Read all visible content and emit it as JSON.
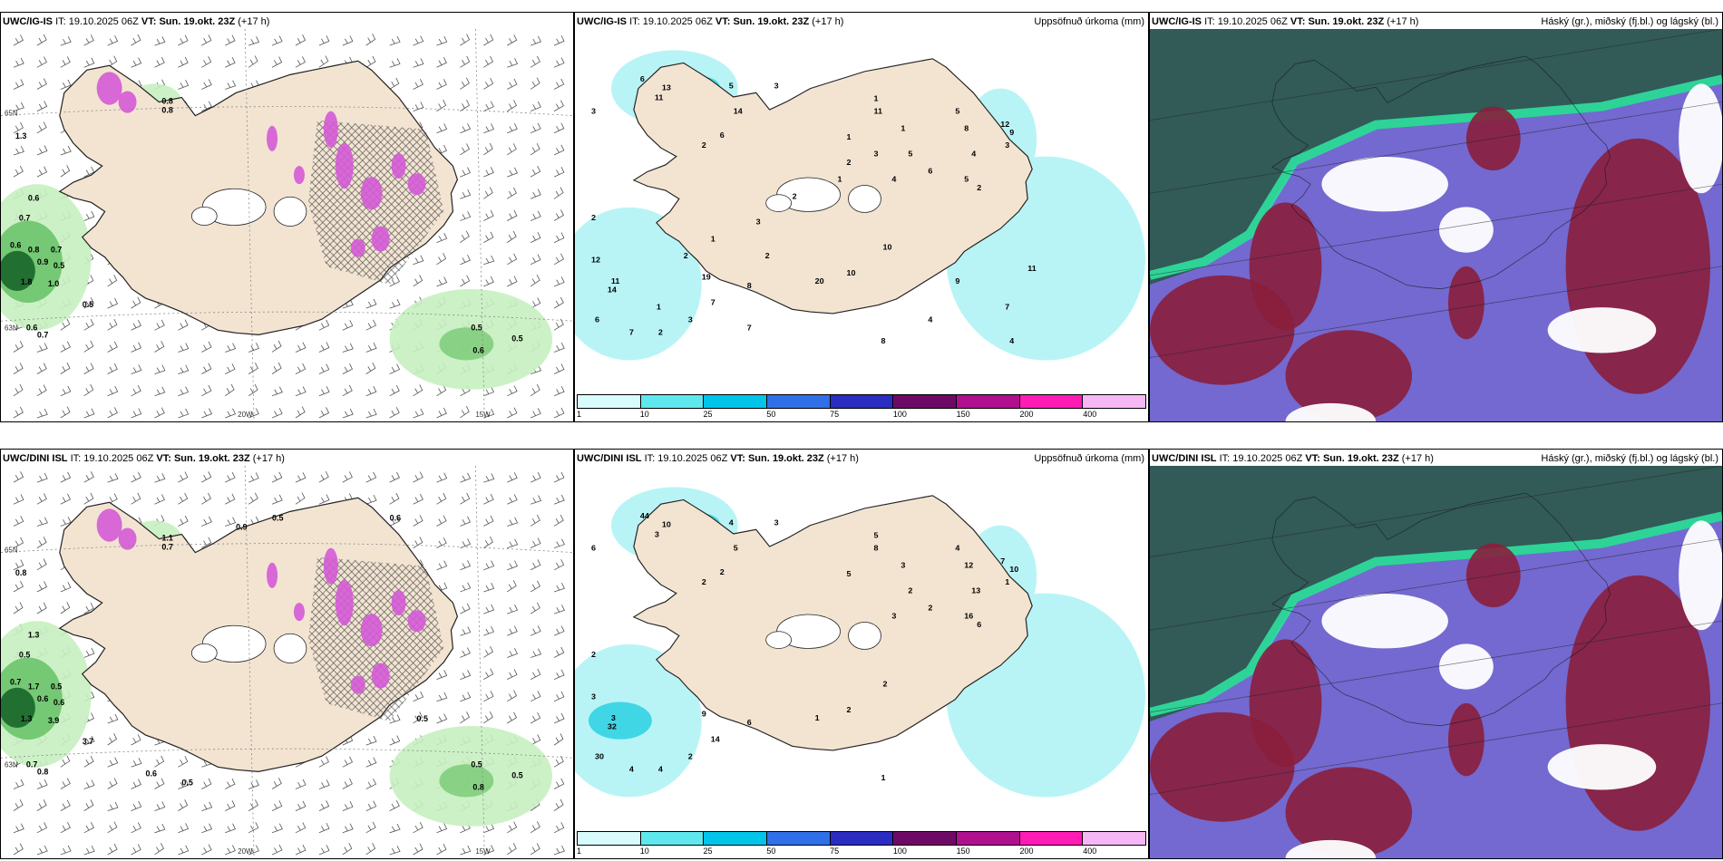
{
  "panels": [
    {
      "model": "UWC/IG-IS",
      "it_label": "IT:",
      "it": "19.10.2025 06Z",
      "vt_label": "VT:",
      "vt": "Sun. 19.okt. 23Z",
      "lead": "(+17 h)",
      "right_title": "",
      "type": "precip_wind",
      "labels": [
        "0.8",
        "0.8",
        "0.6",
        "0.7",
        "0.6",
        "0.8",
        "0.7",
        "0.9",
        "0.5",
        "1.8",
        "1.0",
        "0.5",
        "0.6",
        "0.7",
        "1.3",
        "0.5",
        "0.5",
        "0.6"
      ],
      "grid_labels": [
        "65N",
        "20W",
        "15W",
        "63N"
      ]
    },
    {
      "model": "UWC/IG-IS",
      "it_label": "IT:",
      "it": "19.10.2025 06Z",
      "vt_label": "VT:",
      "vt": "Sun. 19.okt. 23Z",
      "lead": "(+17 h)",
      "right_title": "Uppsöfnuð úrkoma (mm)",
      "type": "accum",
      "labels": [
        "6",
        "13",
        "11",
        "3",
        "14",
        "5",
        "3",
        "2",
        "6",
        "2",
        "12",
        "11",
        "14",
        "6",
        "19",
        "8",
        "7",
        "7",
        "2",
        "3",
        "1",
        "11",
        "1",
        "5",
        "1",
        "5",
        "8",
        "4",
        "5",
        "2",
        "12",
        "9",
        "3",
        "4",
        "6",
        "10",
        "10",
        "20",
        "8",
        "4",
        "9",
        "7",
        "11",
        "4",
        "3",
        "2",
        "1",
        "2",
        "3",
        "1",
        "2",
        "2",
        "1",
        "7"
      ],
      "legend_ticks": [
        "1",
        "10",
        "25",
        "50",
        "75",
        "100",
        "150",
        "200",
        "400"
      ]
    },
    {
      "model": "UWC/IG-IS",
      "it_label": "IT:",
      "it": "19.10.2025 06Z",
      "vt_label": "VT:",
      "vt": "Sun. 19.okt. 23Z",
      "lead": "(+17 h)",
      "right_title": "Háský (gr.), miðský (fj.bl.) og lágský (bl.)",
      "type": "clouds"
    },
    {
      "model": "UWC/DINI ISL",
      "it_label": "IT:",
      "it": "19.10.2025 06Z",
      "vt_label": "VT:",
      "vt": "Sun. 19.okt. 23Z",
      "lead": "(+17 h)",
      "right_title": "",
      "type": "precip_wind",
      "labels": [
        "1.1",
        "0.7",
        "1.3",
        "0.5",
        "0.7",
        "1.7",
        "0.5",
        "0.6",
        "0.6",
        "1.3",
        "3.9",
        "3.7",
        "0.7",
        "0.8",
        "0.8",
        "0.5",
        "0.5",
        "0.8",
        "0.5",
        "0.6",
        "0.5",
        "0.6",
        "0.5",
        "0.9"
      ],
      "grid_labels": [
        "65N",
        "20W",
        "15W",
        "63N"
      ]
    },
    {
      "model": "UWC/DINI ISL",
      "it_label": "IT:",
      "it": "19.10.2025 06Z",
      "vt_label": "VT:",
      "vt": "Sun. 19.okt. 23Z",
      "lead": "(+17 h)",
      "right_title": "Uppsöfnuð úrkoma (mm)",
      "type": "accum",
      "labels": [
        "44",
        "10",
        "3",
        "6",
        "5",
        "4",
        "3",
        "2",
        "2",
        "2",
        "3",
        "3",
        "32",
        "30",
        "9",
        "6",
        "14",
        "4",
        "4",
        "2",
        "5",
        "8",
        "3",
        "2",
        "5",
        "4",
        "12",
        "13",
        "16",
        "6",
        "7",
        "10",
        "1",
        "3",
        "2",
        "2",
        "2",
        "1",
        "1"
      ],
      "legend_ticks": [
        "1",
        "10",
        "25",
        "50",
        "75",
        "100",
        "150",
        "200",
        "400"
      ]
    },
    {
      "model": "UWC/DINI ISL",
      "it_label": "IT:",
      "it": "19.10.2025 06Z",
      "vt_label": "VT:",
      "vt": "Sun. 19.okt. 23Z",
      "lead": "(+17 h)",
      "right_title": "Háský (gr.), miðský (fj.bl.) og lágský (bl.)",
      "type": "clouds"
    }
  ],
  "legend_colors": [
    "#d8fbfb",
    "#5ee8ee",
    "#00c4e8",
    "#2f6fe8",
    "#2a2cc2",
    "#6e0a66",
    "#b0108e",
    "#ff1cb4",
    "#f6b8f4"
  ],
  "colors": {
    "land": "#f3e4d2",
    "coast": "#222222",
    "precip_light": "#c6f0c0",
    "precip_mid": "#6cc46a",
    "precip_dark": "#1e6a2e",
    "snow": "#d45ad6",
    "accum_light": "#b8f4f6",
    "accum_mid": "#40d6e6",
    "cloud_high": "#2e5a50",
    "cloud_mid": "#5a4fc8",
    "cloud_low": "#8a1e3c",
    "cloud_front": "#2ee0a0"
  }
}
